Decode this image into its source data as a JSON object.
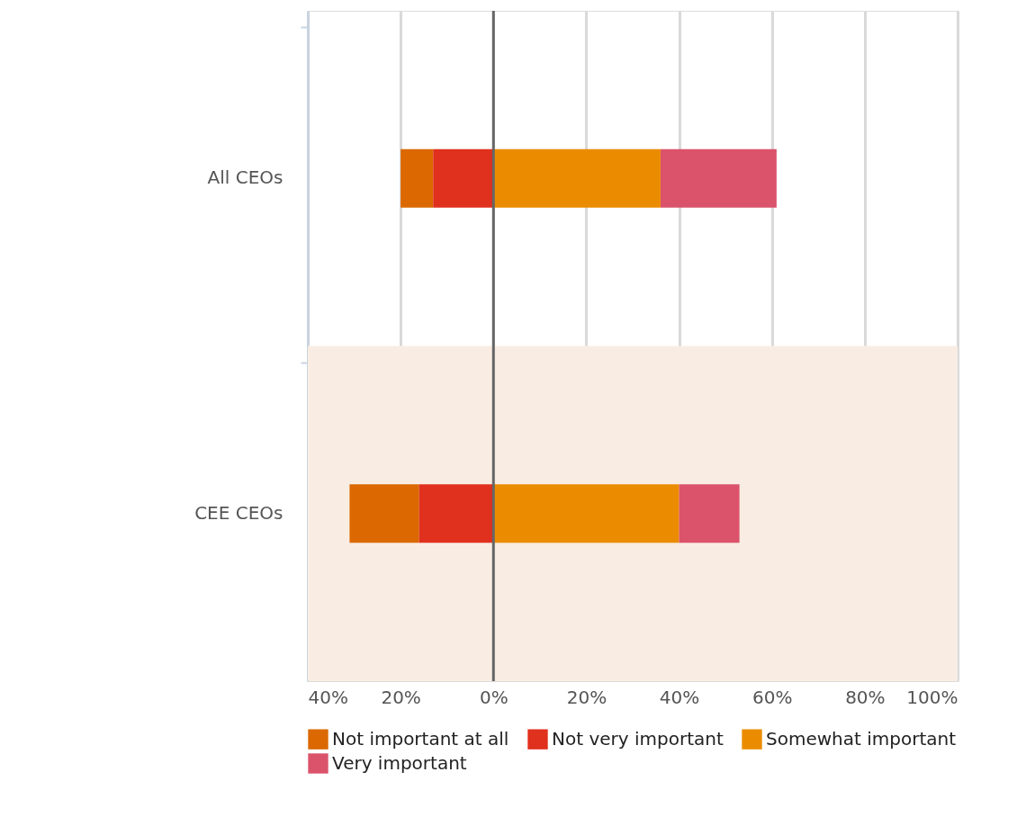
{
  "chart_data": {
    "type": "bar",
    "orientation": "horizontal",
    "stacked": true,
    "categories": [
      "All CEOs",
      "CEE CEOs"
    ],
    "series": [
      {
        "name": "Not important at all",
        "color": "#db6800",
        "values": [
          -7,
          -15
        ]
      },
      {
        "name": "Not very important",
        "color": "#e0301e",
        "values": [
          -13,
          -16
        ]
      },
      {
        "name": "Somewhat important",
        "color": "#eb8c00",
        "values": [
          36,
          40
        ]
      },
      {
        "name": "Very important",
        "color": "#db536a",
        "values": [
          25,
          13
        ]
      }
    ],
    "xlim": [
      -40,
      100
    ],
    "xticks": [
      {
        "value": -40,
        "label": "40%"
      },
      {
        "value": -20,
        "label": "20%"
      },
      {
        "value": 0,
        "label": "0%"
      },
      {
        "value": 20,
        "label": "20%"
      },
      {
        "value": 40,
        "label": "40%"
      },
      {
        "value": 60,
        "label": "60%"
      },
      {
        "value": 80,
        "label": "80%"
      },
      {
        "value": 100,
        "label": "100%"
      }
    ],
    "ref_lines": [
      {
        "axis": "x",
        "value": 0,
        "color": "#666666"
      }
    ],
    "bands": [
      {
        "axis": "y",
        "from": "CEE CEOs",
        "to": "CEE CEOs",
        "color": "#f9ede3"
      }
    ],
    "grid": "x",
    "legend": "bottom"
  }
}
